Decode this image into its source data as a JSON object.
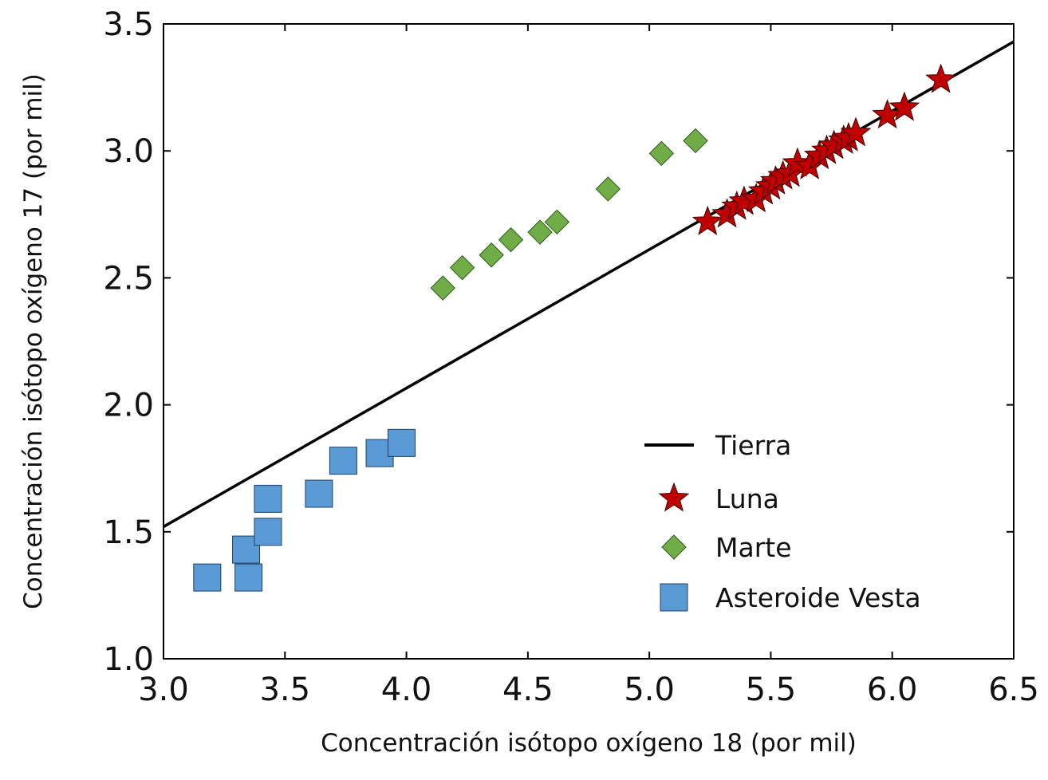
{
  "chart_data": {
    "type": "scatter",
    "xlabel": "Concentración isótopo oxígeno 18 (por mil)",
    "ylabel": "Concentración isótopo oxígeno 17 (por mil)",
    "xlim": [
      3.0,
      6.5
    ],
    "ylim": [
      1.0,
      3.5
    ],
    "x_ticks": [
      "3.0",
      "3.5",
      "4.0",
      "4.5",
      "5.0",
      "5.5",
      "6.0",
      "6.5"
    ],
    "y_ticks": [
      "1.0",
      "1.5",
      "2.0",
      "2.5",
      "3.0",
      "3.5"
    ],
    "grid": false,
    "legend_position": "bottom-right",
    "line": {
      "name": "Tierra",
      "color": "#000000",
      "points": [
        [
          3.0,
          1.52
        ],
        [
          6.5,
          3.43
        ]
      ]
    },
    "series": [
      {
        "name": "Luna",
        "marker": "star",
        "color": "#c00000",
        "points": [
          [
            5.24,
            2.72
          ],
          [
            5.32,
            2.75
          ],
          [
            5.36,
            2.78
          ],
          [
            5.39,
            2.8
          ],
          [
            5.44,
            2.81
          ],
          [
            5.47,
            2.84
          ],
          [
            5.5,
            2.86
          ],
          [
            5.52,
            2.88
          ],
          [
            5.55,
            2.9
          ],
          [
            5.58,
            2.91
          ],
          [
            5.61,
            2.95
          ],
          [
            5.66,
            2.94
          ],
          [
            5.7,
            2.98
          ],
          [
            5.73,
            3.0
          ],
          [
            5.76,
            3.02
          ],
          [
            5.8,
            3.04
          ],
          [
            5.82,
            3.05
          ],
          [
            5.85,
            3.07
          ],
          [
            5.98,
            3.14
          ],
          [
            6.05,
            3.17
          ],
          [
            6.2,
            3.28
          ]
        ]
      },
      {
        "name": "Marte",
        "marker": "diamond",
        "color": "#70ad47",
        "points": [
          [
            4.15,
            2.46
          ],
          [
            4.23,
            2.54
          ],
          [
            4.35,
            2.59
          ],
          [
            4.43,
            2.65
          ],
          [
            4.55,
            2.68
          ],
          [
            4.62,
            2.72
          ],
          [
            4.83,
            2.85
          ],
          [
            5.05,
            2.99
          ],
          [
            5.19,
            3.04
          ]
        ]
      },
      {
        "name": "Asteroide Vesta",
        "marker": "square",
        "color": "#5b9bd5",
        "points": [
          [
            3.18,
            1.32
          ],
          [
            3.34,
            1.43
          ],
          [
            3.35,
            1.32
          ],
          [
            3.43,
            1.5
          ],
          [
            3.43,
            1.63
          ],
          [
            3.64,
            1.65
          ],
          [
            3.74,
            1.78
          ],
          [
            3.89,
            1.81
          ],
          [
            3.98,
            1.85
          ]
        ]
      }
    ]
  }
}
